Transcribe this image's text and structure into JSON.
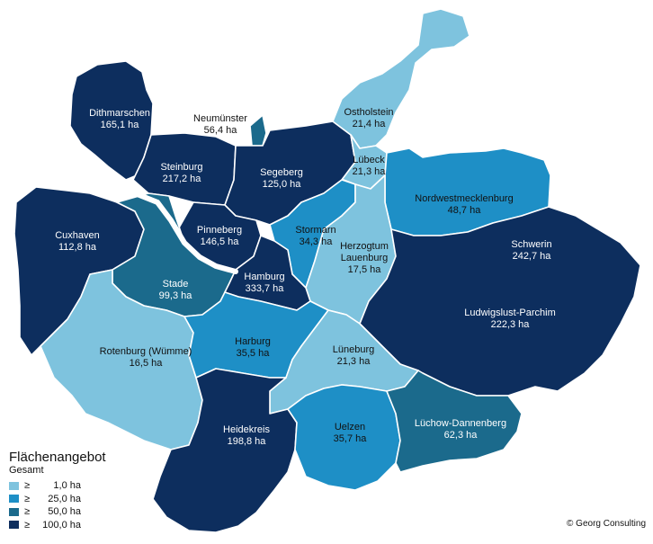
{
  "colors": {
    "class1": "#7ec3de",
    "class2": "#1e8fc6",
    "class3": "#1b6a8c",
    "class4": "#0d2e5e"
  },
  "regions": [
    {
      "key": "dithmarschen",
      "name": "Dithmarschen",
      "value": "165,1 ha"
    },
    {
      "key": "neumuenster",
      "name": "Neumünster",
      "value": "56,4 ha"
    },
    {
      "key": "ostholstein",
      "name": "Ostholstein",
      "value": "21,4 ha"
    },
    {
      "key": "steinburg",
      "name": "Steinburg",
      "value": "217,2 ha"
    },
    {
      "key": "segeberg",
      "name": "Segeberg",
      "value": "125,0 ha"
    },
    {
      "key": "luebeck",
      "name": "Lübeck",
      "value": "21,3 ha"
    },
    {
      "key": "nordwestmecklenburg",
      "name": "Nordwestmecklenburg",
      "value": "48,7 ha"
    },
    {
      "key": "cuxhaven",
      "name": "Cuxhaven",
      "value": "112,8 ha"
    },
    {
      "key": "pinneberg",
      "name": "Pinneberg",
      "value": "146,5 ha"
    },
    {
      "key": "stormarn",
      "name": "Stormarn",
      "value": "34,3 ha"
    },
    {
      "key": "herzogtum_lauenburg",
      "name": "Herzogtum",
      "name2": "Lauenburg",
      "value": "17,5 ha"
    },
    {
      "key": "schwerin",
      "name": "Schwerin",
      "value": "242,7 ha"
    },
    {
      "key": "stade",
      "name": "Stade",
      "value": "99,3 ha"
    },
    {
      "key": "hamburg",
      "name": "Hamburg",
      "value": "333,7 ha"
    },
    {
      "key": "ludwigslust_parchim",
      "name": "Ludwigslust-Parchim",
      "value": "222,3 ha"
    },
    {
      "key": "rotenburg",
      "name": "Rotenburg (Wümme)",
      "value": "16,5 ha"
    },
    {
      "key": "harburg",
      "name": "Harburg",
      "value": "35,5 ha"
    },
    {
      "key": "lueneburg",
      "name": "Lüneburg",
      "value": "21,3 ha"
    },
    {
      "key": "heidekreis",
      "name": "Heidekreis",
      "value": "198,8 ha"
    },
    {
      "key": "uelzen",
      "name": "Uelzen",
      "value": "35,7 ha"
    },
    {
      "key": "luechow_dannenberg",
      "name": "Lüchow-Dannenberg",
      "value": "62,3 ha"
    }
  ],
  "legend": {
    "title": "Flächenangebot",
    "subtitle": "Gesamt",
    "symbol": "≥",
    "items": [
      {
        "value": "1,0 ha"
      },
      {
        "value": "25,0 ha"
      },
      {
        "value": "50,0 ha"
      },
      {
        "value": "100,0 ha"
      }
    ]
  },
  "copyright": "© Georg Consulting"
}
